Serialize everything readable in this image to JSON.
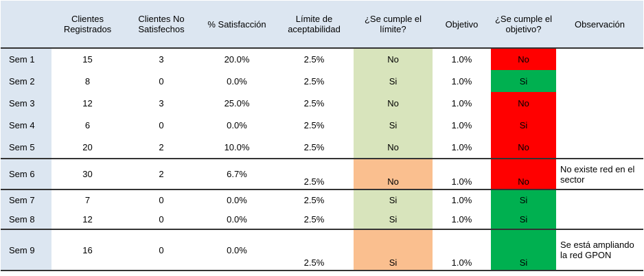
{
  "table": {
    "header": [
      "Clientes Registrados",
      "Clientes No Satisfechos",
      "% Satisfacción",
      "Límite de aceptabilidad",
      "¿Se cumple el límite?",
      "Objetivo",
      "¿Se cumple el objetivo?",
      "Observación"
    ],
    "rows": [
      [
        "Sem 1",
        "15",
        "3",
        "20.0%",
        "2.5%",
        "No",
        "1.0%",
        "No"
      ],
      [
        "Sem 2",
        "8",
        "0",
        "0.0%",
        "2.5%",
        "Si",
        "1.0%",
        "Si"
      ],
      [
        "Sem 3",
        "12",
        "3",
        "25.0%",
        "2.5%",
        "No",
        "1.0%",
        "No"
      ],
      [
        "Sem 4",
        "6",
        "0",
        "0.0%",
        "2.5%",
        "Si",
        "1.0%",
        "Si"
      ],
      [
        "Sem 5",
        "20",
        "2",
        "10.0%",
        "2.5%",
        "No",
        "1.0%",
        "No"
      ],
      [
        "Sem 6",
        "30",
        "2",
        "6.7%",
        "2.5%",
        "No",
        "1.0%",
        "No",
        "No existe red en el sector"
      ],
      [
        "Sem 7",
        "7",
        "0",
        "0.0%",
        "2.5%",
        "Si",
        "1.0%",
        "Si"
      ],
      [
        "Sem 8",
        "12",
        "0",
        "0.0%",
        "2.5%",
        "Si",
        "1.0%",
        "Si"
      ],
      [
        "Sem 9",
        "16",
        "0",
        "0.0%",
        "2.5%",
        "Si",
        "1.0%",
        "Si",
        "Se está ampliando la red GPON"
      ]
    ]
  }
}
